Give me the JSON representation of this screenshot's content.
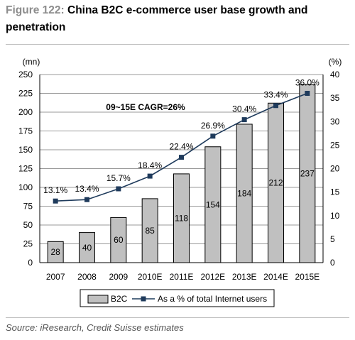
{
  "figure": {
    "label": "Figure 122:",
    "title": "China B2C e-commerce user base growth and penetration",
    "source": "Source: iResearch, Credit Suisse estimates"
  },
  "chart_data": {
    "type": "bar",
    "categories": [
      "2007",
      "2008",
      "2009",
      "2010E",
      "2011E",
      "2012E",
      "2013E",
      "2014E",
      "2015E"
    ],
    "series": [
      {
        "name": "B2C",
        "type": "bar",
        "axis": "left",
        "values": [
          28,
          40,
          60,
          85,
          118,
          154,
          184,
          212,
          237
        ]
      },
      {
        "name": "As a % of total Internet users",
        "type": "line",
        "axis": "right",
        "values": [
          13.1,
          13.4,
          15.7,
          18.4,
          22.4,
          26.9,
          30.4,
          33.4,
          36.0
        ],
        "labels": [
          "13.1%",
          "13.4%",
          "15.7%",
          "18.4%",
          "22.4%",
          "26.9%",
          "30.4%",
          "33.4%",
          "36.0%"
        ]
      }
    ],
    "ylabel_left": "(mn)",
    "ylabel_right": "(%)",
    "ylim_left": [
      0,
      250
    ],
    "ylim_right": [
      0,
      40
    ],
    "yticks_left": [
      "0",
      "25",
      "50",
      "75",
      "100",
      "125",
      "150",
      "175",
      "200",
      "225",
      "250"
    ],
    "yticks_right": [
      "0",
      "5",
      "10",
      "15",
      "20",
      "25",
      "30",
      "35",
      "40"
    ],
    "annotation": "09~15E CAGR=26%",
    "grid": true,
    "legend_position": "bottom",
    "colors": {
      "bar": "#c0c0c0",
      "line": "#1f3b5c"
    }
  }
}
